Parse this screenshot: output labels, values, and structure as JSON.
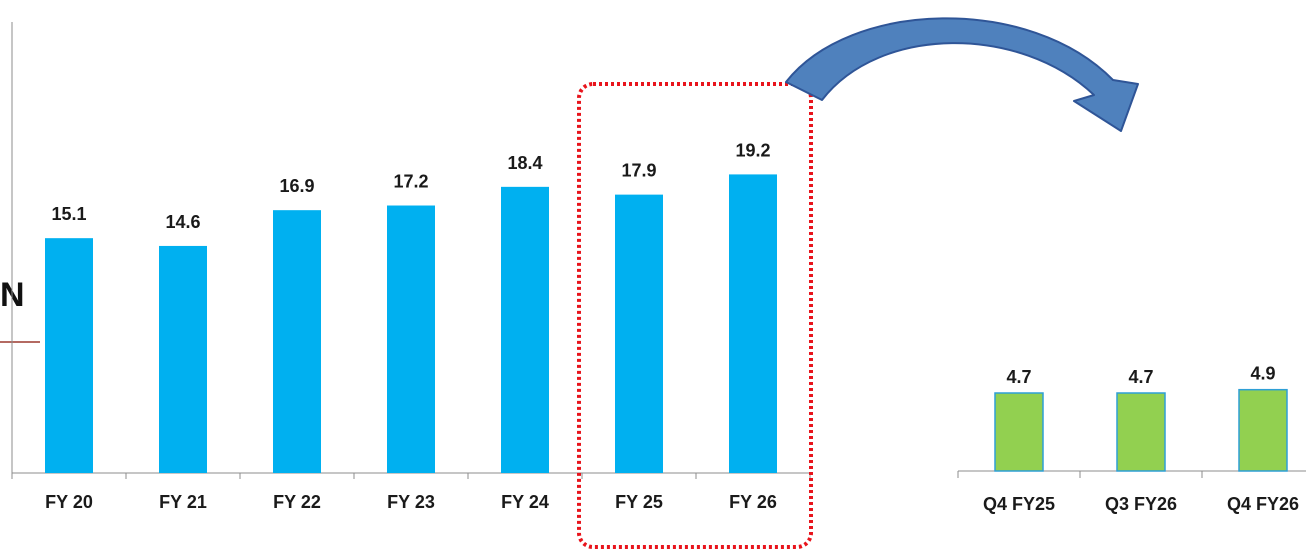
{
  "fragment": {
    "letter": "N"
  },
  "colors": {
    "annual_bar": "#00b0f0",
    "quarter_bar": "#92d050",
    "quarter_bar_border": "#2e9fd6",
    "highlight_box": "#e8141c",
    "arrow_fill": "#4f81bd",
    "arrow_stroke": "#2f5597",
    "axis": "#8c8c8c",
    "label": "#1a1a1a"
  },
  "icons": {
    "arrow": "curved-arrow-icon"
  },
  "chart_data": [
    {
      "type": "bar",
      "categories": [
        "FY 20",
        "FY 21",
        "FY 22",
        "FY 23",
        "FY 24",
        "FY 25",
        "FY 26"
      ],
      "values": [
        15.1,
        14.6,
        16.9,
        17.2,
        18.4,
        17.9,
        19.2
      ],
      "value_labels": [
        "15.1",
        "14.6",
        "16.9",
        "17.2",
        "18.4",
        "17.9",
        "19.2"
      ],
      "ylim": [
        0,
        29
      ],
      "grid": false,
      "highlight": [
        "FY 25",
        "FY 26"
      ]
    },
    {
      "type": "bar",
      "categories": [
        "Q4 FY25",
        "Q3 FY26",
        "Q4 FY26"
      ],
      "values": [
        4.7,
        4.7,
        4.9
      ],
      "value_labels": [
        "4.7",
        "4.7",
        "4.9"
      ],
      "ylim": [
        0,
        16
      ],
      "grid": false
    }
  ]
}
